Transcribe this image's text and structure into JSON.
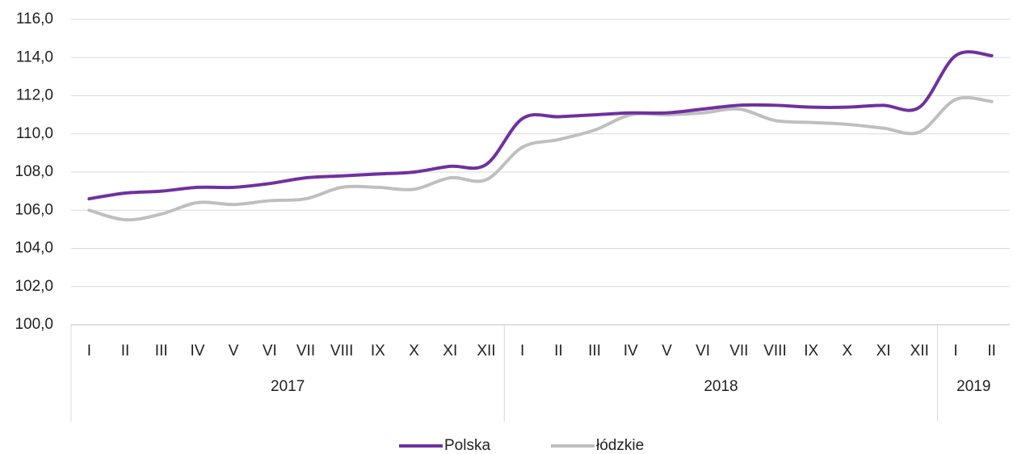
{
  "chart_data": {
    "type": "line",
    "category_groups": [
      {
        "label": "2017",
        "categories": [
          "I",
          "II",
          "III",
          "IV",
          "V",
          "VI",
          "VII",
          "VIII",
          "IX",
          "X",
          "XI",
          "XII"
        ]
      },
      {
        "label": "2018",
        "categories": [
          "I",
          "II",
          "III",
          "IV",
          "V",
          "VI",
          "VII",
          "VIII",
          "IX",
          "X",
          "XI",
          "XII"
        ]
      },
      {
        "label": "2019",
        "categories": [
          "I",
          "II"
        ]
      }
    ],
    "series": [
      {
        "name": "Polska",
        "color": "#7030a0",
        "values": [
          106.6,
          106.9,
          107.0,
          107.2,
          107.2,
          107.4,
          107.7,
          107.8,
          107.9,
          108.0,
          108.3,
          108.4,
          110.8,
          110.9,
          111.0,
          111.1,
          111.1,
          111.3,
          111.5,
          111.5,
          111.4,
          111.4,
          111.5,
          111.4,
          114.1,
          114.1
        ]
      },
      {
        "name": "łódzkie",
        "color": "#bfbfbf",
        "values": [
          106.0,
          105.5,
          105.8,
          106.4,
          106.3,
          106.5,
          106.6,
          107.2,
          107.2,
          107.1,
          107.7,
          107.6,
          109.3,
          109.7,
          110.2,
          111.0,
          111.0,
          111.1,
          111.3,
          110.7,
          110.6,
          110.5,
          110.3,
          110.1,
          111.8,
          111.7
        ]
      }
    ],
    "ylim": [
      100,
      116
    ],
    "yticks": [
      {
        "value": 100,
        "label": "100,0"
      },
      {
        "value": 102,
        "label": "102,0"
      },
      {
        "value": 104,
        "label": "104,0"
      },
      {
        "value": 106,
        "label": "106,0"
      },
      {
        "value": 108,
        "label": "108,0"
      },
      {
        "value": 110,
        "label": "110,0"
      },
      {
        "value": 112,
        "label": "112,0"
      },
      {
        "value": 114,
        "label": "114,0"
      },
      {
        "value": 116,
        "label": "116,0"
      }
    ],
    "grid": true,
    "legend": "bottom"
  }
}
